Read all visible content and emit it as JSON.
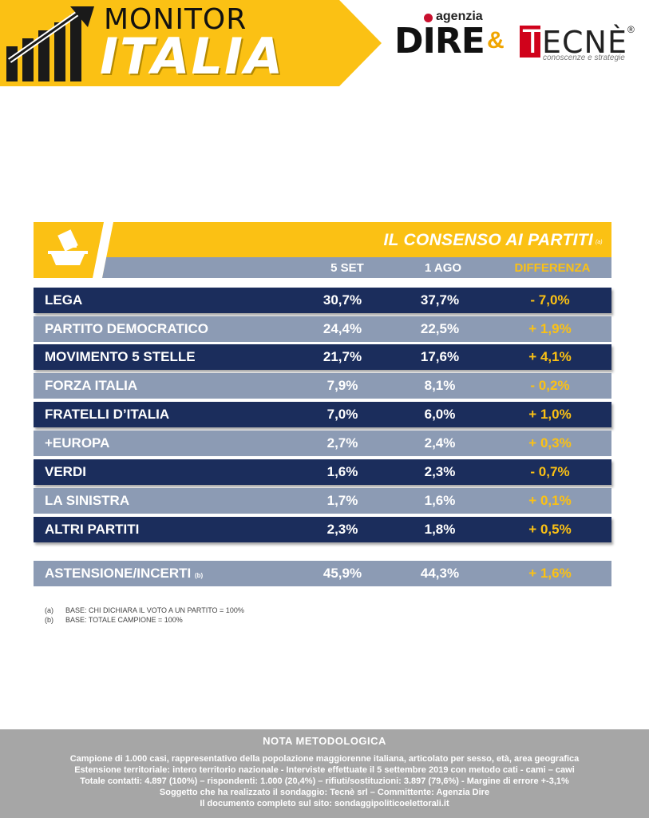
{
  "header": {
    "monitor": "MONITOR",
    "italia": "ITALIA",
    "dire_agenzia": "agenzia",
    "dire_word": "DIRE",
    "amp": "&",
    "tecne_word": "ECNÈ",
    "tecne_first": "T",
    "tecne_reg": "®",
    "tecne_tagline": "conoscenze e strategie",
    "colors": {
      "yellow": "#fbc114",
      "red": "#c8102e"
    }
  },
  "table": {
    "title": "IL CONSENSO AI PARTITI",
    "title_note": "(a)",
    "icon": "ballot-box-icon",
    "columns": {
      "c1": "5 SET",
      "c2": "1 AGO",
      "c3": "DIFFERENZA"
    },
    "rows": [
      {
        "name": "LEGA",
        "v1": "30,7%",
        "v2": "37,7%",
        "diff": "- 7,0%"
      },
      {
        "name": "PARTITO DEMOCRATICO",
        "v1": "24,4%",
        "v2": "22,5%",
        "diff": "+ 1,9%"
      },
      {
        "name": "MOVIMENTO 5 STELLE",
        "v1": "21,7%",
        "v2": "17,6%",
        "diff": "+ 4,1%"
      },
      {
        "name": "FORZA ITALIA",
        "v1": "7,9%",
        "v2": "8,1%",
        "diff": "- 0,2%"
      },
      {
        "name": "FRATELLI D’ITALIA",
        "v1": "7,0%",
        "v2": "6,0%",
        "diff": "+ 1,0%"
      },
      {
        "name": "+EUROPA",
        "v1": "2,7%",
        "v2": "2,4%",
        "diff": "+ 0,3%"
      },
      {
        "name": "VERDI",
        "v1": "1,6%",
        "v2": "2,3%",
        "diff": "- 0,7%"
      },
      {
        "name": "LA SINISTRA",
        "v1": "1,7%",
        "v2": "1,6%",
        "diff": "+ 0,1%"
      },
      {
        "name": "ALTRI PARTITI",
        "v1": "2,3%",
        "v2": "1,8%",
        "diff": "+ 0,5%"
      }
    ],
    "astensione": {
      "name": "ASTENSIONE/INCERTI",
      "note": "(b)",
      "v1": "45,9%",
      "v2": "44,3%",
      "diff": "+ 1,6%"
    }
  },
  "notes": [
    {
      "key": "(a)",
      "text": "BASE: CHI DICHIARA IL VOTO A UN PARTITO = 100%"
    },
    {
      "key": "(b)",
      "text": "BASE: TOTALE CAMPIONE = 100%"
    }
  ],
  "footer": {
    "title": "NOTA METODOLOGICA",
    "lines": [
      "Campione di 1.000 casi, rappresentativo della popolazione maggiorenne italiana, articolato per sesso, età, area geografica",
      "Estensione territoriale: intero territorio nazionale  - Interviste effettuate il 5 settembre 2019 con metodo cati - cami – cawi",
      "Totale contatti: 4.897 (100%) – rispondenti:  1.000 (20,4%) – rifiuti/sostituzioni: 3.897 (79,6%) - Margine di errore +-3,1%",
      "Soggetto che ha realizzato il sondaggio: Tecnè srl – Committente: Agenzia Dire",
      "Il documento completo sul sito: sondaggipoliticoelettorali.it"
    ]
  }
}
